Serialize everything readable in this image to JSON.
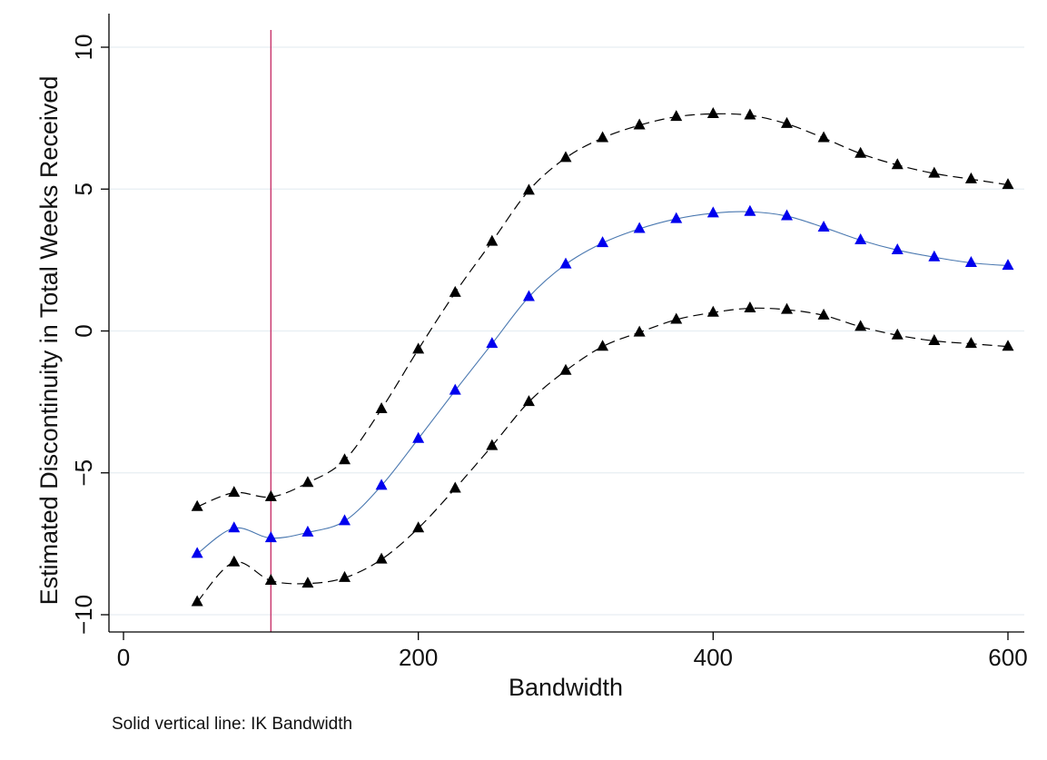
{
  "chart_data": {
    "type": "line",
    "title": "",
    "xlabel": "Bandwidth",
    "ylabel": "Estimated Discontinuity in Total Weeks Received",
    "note": "Solid vertical line: IK Bandwidth",
    "xlim": [
      0,
      600
    ],
    "ylim": [
      -10,
      10
    ],
    "xticks": [
      0,
      200,
      400,
      600
    ],
    "yticks": [
      -10,
      -5,
      0,
      5,
      10
    ],
    "grid": true,
    "reference_line": {
      "x": 100,
      "color": "#c8336b"
    },
    "x": [
      50,
      75,
      100,
      125,
      150,
      175,
      200,
      225,
      250,
      275,
      300,
      325,
      350,
      375,
      400,
      425,
      450,
      475,
      500,
      525,
      550,
      575,
      600
    ],
    "series": [
      {
        "style": "dashed",
        "color": "#000000",
        "marker_color": "#000000",
        "values": [
          -6.2,
          -5.7,
          -5.85,
          -5.35,
          -4.55,
          -2.75,
          -0.65,
          1.35,
          3.15,
          4.95,
          6.1,
          6.8,
          7.25,
          7.55,
          7.65,
          7.6,
          7.3,
          6.8,
          6.25,
          5.85,
          5.55,
          5.35,
          5.15
        ]
      },
      {
        "style": "solid",
        "color": "#4a78b0",
        "marker_color": "#0000ee",
        "values": [
          -7.85,
          -6.95,
          -7.3,
          -7.1,
          -6.7,
          -5.45,
          -3.8,
          -2.1,
          -0.45,
          1.2,
          2.35,
          3.1,
          3.6,
          3.95,
          4.15,
          4.2,
          4.05,
          3.65,
          3.2,
          2.85,
          2.6,
          2.4,
          2.3
        ]
      },
      {
        "style": "dashed",
        "color": "#000000",
        "marker_color": "#000000",
        "values": [
          -9.55,
          -8.15,
          -8.8,
          -8.9,
          -8.7,
          -8.05,
          -6.95,
          -5.55,
          -4.05,
          -2.5,
          -1.4,
          -0.55,
          -0.05,
          0.4,
          0.65,
          0.8,
          0.75,
          0.55,
          0.15,
          -0.15,
          -0.35,
          -0.45,
          -0.55
        ]
      }
    ]
  }
}
